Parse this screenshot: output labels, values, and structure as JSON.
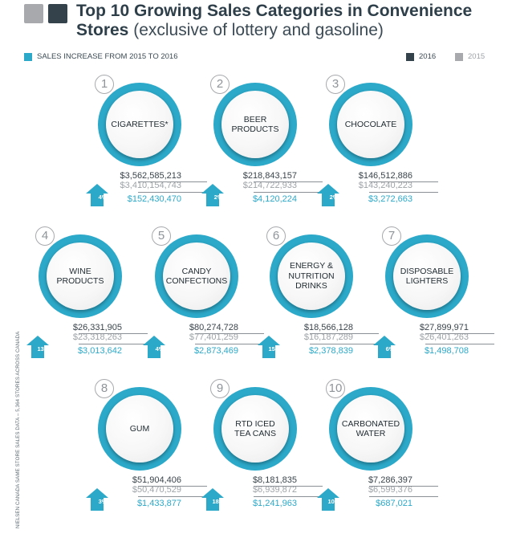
{
  "header": {
    "title_bold": "Top 10 Growing Sales Categories in Convenience Stores",
    "title_light": "(exclusive of lottery and gasoline)"
  },
  "legend": {
    "increase_label": "SALES INCREASE FROM 2015 TO 2016",
    "label_2016": "2016",
    "label_2015": "2015"
  },
  "colors": {
    "accent": "#2ca9c9",
    "dark": "#34424c",
    "gray": "#a7a9ac"
  },
  "source_note": "NIELSEN CANADA SAME STORE SALES DATA – 5,364 STORES ACROSS CANADA",
  "chart_data": {
    "type": "table",
    "title": "Top 10 Growing Sales Categories in Convenience Stores",
    "subtitle": "(exclusive of lottery and gasoline)",
    "series_names": [
      "2016",
      "2015",
      "SALES INCREASE FROM 2015 TO 2016"
    ],
    "categories": [
      {
        "rank": "1",
        "name": "CIGARETTES*",
        "v2016": "$3,562,585,213",
        "v2015": "$3,410,154,743",
        "increase": "$152,430,470",
        "pct": "4%"
      },
      {
        "rank": "2",
        "name": "BEER PRODUCTS",
        "v2016": "$218,843,157",
        "v2015": "$214,722,933",
        "increase": "$4,120,224",
        "pct": "2%"
      },
      {
        "rank": "3",
        "name": "CHOCOLATE",
        "v2016": "$146,512,886",
        "v2015": "$143,240,223",
        "increase": "$3,272,663",
        "pct": "2%"
      },
      {
        "rank": "4",
        "name": "WINE PRODUCTS",
        "v2016": "$26,331,905",
        "v2015": "$23,318,263",
        "increase": "$3,013,642",
        "pct": "13%"
      },
      {
        "rank": "5",
        "name": "CANDY CONFECTIONS",
        "v2016": "$80,274,728",
        "v2015": "$77,401,259",
        "increase": "$2,873,469",
        "pct": "4%"
      },
      {
        "rank": "6",
        "name": "ENERGY & NUTRITION DRINKS",
        "v2016": "$18,566,128",
        "v2015": "$16,187,289",
        "increase": "$2,378,839",
        "pct": "15%"
      },
      {
        "rank": "7",
        "name": "DISPOSABLE LIGHTERS",
        "v2016": "$27,899,971",
        "v2015": "$26,401,263",
        "increase": "$1,498,708",
        "pct": "6%"
      },
      {
        "rank": "8",
        "name": "GUM",
        "v2016": "$51,904,406",
        "v2015": "$50,470,529",
        "increase": "$1,433,877",
        "pct": "3%"
      },
      {
        "rank": "9",
        "name": "RTD ICED TEA CANS",
        "v2016": "$8,181,835",
        "v2015": "$6,939,872",
        "increase": "$1,241,963",
        "pct": "18%"
      },
      {
        "rank": "10",
        "name": "CARBONATED WATER",
        "v2016": "$7,286,397",
        "v2015": "$6,599,376",
        "increase": "$687,021",
        "pct": "10%"
      }
    ]
  }
}
